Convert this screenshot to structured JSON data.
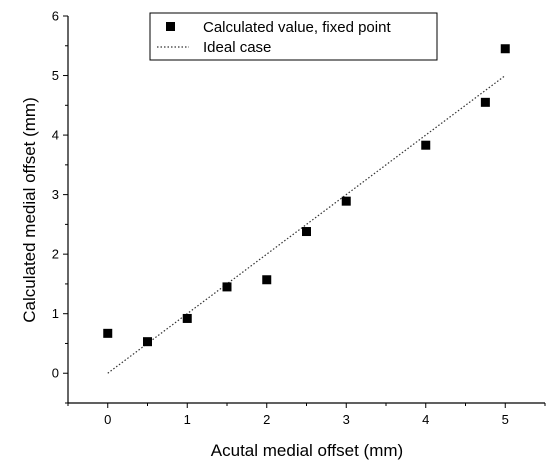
{
  "chart_data": {
    "type": "scatter",
    "xlabel": "Acutal medial offset (mm)",
    "ylabel": "Calculated medial offset (mm)",
    "xlim": [
      -0.5,
      5.5
    ],
    "ylim": [
      -0.5,
      6
    ],
    "xticks": [
      0,
      1,
      2,
      3,
      4,
      5
    ],
    "yticks": [
      0,
      1,
      2,
      3,
      4,
      5,
      6
    ],
    "grid": false,
    "legend_position": "top-center",
    "series": [
      {
        "name": "Calculated value, fixed point",
        "kind": "scatter",
        "marker": "square",
        "color": "#000000",
        "x": [
          0,
          0.5,
          1,
          1.5,
          2,
          2.5,
          3,
          4,
          4.75,
          5
        ],
        "y": [
          0.67,
          0.53,
          0.92,
          1.45,
          1.57,
          2.38,
          2.89,
          3.83,
          4.55,
          5.45
        ]
      },
      {
        "name": "Ideal case",
        "kind": "line",
        "style": "dotted",
        "color": "#333333",
        "x": [
          0,
          5
        ],
        "y": [
          0,
          5
        ]
      }
    ]
  }
}
